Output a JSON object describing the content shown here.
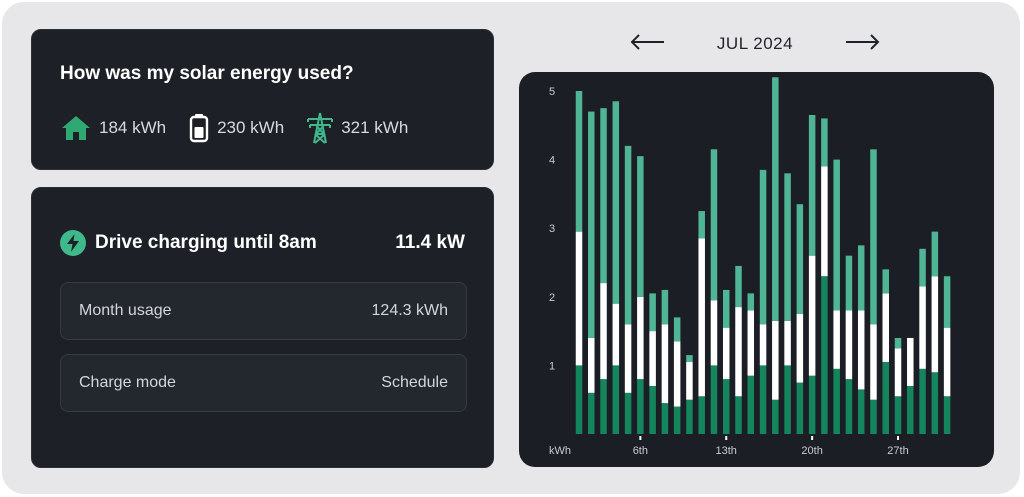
{
  "solar": {
    "title": "How was my solar energy used?",
    "stats": [
      {
        "icon": "home-icon",
        "value": "184 kWh"
      },
      {
        "icon": "battery-icon",
        "value": "230 kWh"
      },
      {
        "icon": "power-tower-icon",
        "value": "321 kWh"
      }
    ]
  },
  "charging": {
    "title": "Drive charging until 8am",
    "power": "11.4 kW",
    "rows": [
      {
        "label": "Month usage",
        "value": "124.3 kWh"
      },
      {
        "label": "Charge mode",
        "value": "Schedule"
      }
    ]
  },
  "nav": {
    "month": "JUL 2024",
    "prev_icon": "arrow-left-icon",
    "next_icon": "arrow-right-icon"
  },
  "colors": {
    "dark_green": "#14855d",
    "light_green": "#4fb595",
    "white": "#ffffff",
    "card_bg": "#1d2027",
    "page_bg": "#e7e7ea",
    "accent": "#3fb98c"
  },
  "chart_data": {
    "type": "bar",
    "stacked": true,
    "unit_label": "kWh",
    "ylim": [
      0,
      5
    ],
    "y_ticks": [
      "1",
      "2",
      "3",
      "4",
      "5"
    ],
    "x_tick_labels": [
      {
        "day": 6,
        "label": "6th"
      },
      {
        "day": 13,
        "label": "13th"
      },
      {
        "day": 20,
        "label": "20th"
      },
      {
        "day": 27,
        "label": "27th"
      }
    ],
    "days": [
      1,
      2,
      3,
      4,
      5,
      6,
      7,
      8,
      9,
      10,
      11,
      12,
      13,
      14,
      15,
      16,
      17,
      18,
      19,
      20,
      21,
      22,
      23,
      24,
      25,
      26,
      27,
      28,
      29,
      30,
      31
    ],
    "series": [
      {
        "color": "dark_green",
        "values": [
          1.0,
          0.6,
          0.8,
          1.0,
          0.6,
          0.8,
          0.7,
          0.45,
          0.4,
          0.5,
          0.55,
          1.0,
          0.8,
          0.55,
          0.85,
          1.0,
          0.5,
          1.0,
          0.75,
          0.85,
          2.3,
          0.95,
          0.8,
          0.65,
          0.5,
          1.05,
          0.55,
          0.7,
          0.95,
          0.9,
          0.55
        ]
      },
      {
        "color": "white",
        "values": [
          1.95,
          0.8,
          1.4,
          0.9,
          1.0,
          1.2,
          0.8,
          1.15,
          0.95,
          0.55,
          2.3,
          0.95,
          0.75,
          1.3,
          0.95,
          0.6,
          1.15,
          0.65,
          1.0,
          1.75,
          1.6,
          0.85,
          1.0,
          1.15,
          1.1,
          1.0,
          0.7,
          0.7,
          1.2,
          1.4,
          1.0
        ]
      },
      {
        "color": "light_green",
        "values": [
          2.05,
          3.3,
          2.55,
          2.95,
          2.6,
          2.05,
          0.55,
          0.5,
          0.35,
          0.1,
          0.4,
          2.2,
          0.55,
          0.6,
          0.25,
          2.25,
          3.55,
          2.15,
          1.6,
          2.05,
          0.7,
          2.2,
          0.8,
          0.95,
          2.55,
          0.35,
          0.15,
          0.0,
          0.55,
          0.65,
          0.75
        ]
      }
    ]
  }
}
